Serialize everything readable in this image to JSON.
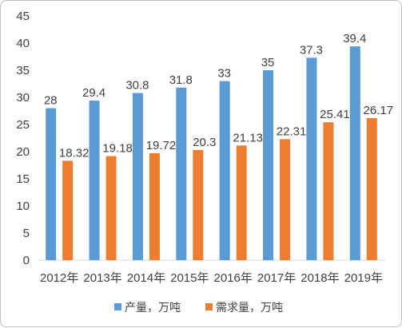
{
  "chart_data": {
    "type": "bar",
    "categories": [
      "2012年",
      "2013年",
      "2014年",
      "2015年",
      "2016年",
      "2017年",
      "2018年",
      "2019年"
    ],
    "series": [
      {
        "name": "产量，万吨",
        "color": "#5b9bd5",
        "values": [
          28,
          29.4,
          30.8,
          31.8,
          33,
          35,
          37.3,
          39.4
        ]
      },
      {
        "name": "需求量，万吨",
        "color": "#ed7d31",
        "values": [
          18.32,
          19.18,
          19.72,
          20.3,
          21.13,
          22.31,
          25.41,
          26.17
        ]
      }
    ],
    "y_ticks": [
      0,
      5,
      10,
      15,
      20,
      25,
      30,
      35,
      40,
      45
    ],
    "ylim": [
      0,
      45
    ],
    "grid": false,
    "legend_position": "bottom",
    "title": "",
    "xlabel": "",
    "ylabel": ""
  }
}
